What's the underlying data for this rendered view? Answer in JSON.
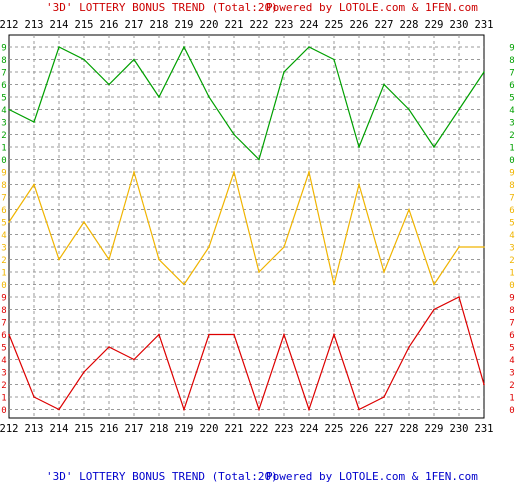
{
  "header": {
    "title_text": "'3D' LOTTERY BONUS TREND (Total:20)",
    "powered_text": "Powered by LOTOLE.com & 1FEN.com",
    "title_color": "#cc0000"
  },
  "footer": {
    "title_text": "'3D' LOTTERY BONUS TREND (Total:20)",
    "powered_text": "Powered by LOTOLE.com & 1FEN.com",
    "title_color": "#0000cc"
  },
  "chart_data": {
    "type": "line",
    "categories": [
      "212",
      "213",
      "214",
      "215",
      "216",
      "217",
      "218",
      "219",
      "220",
      "221",
      "222",
      "223",
      "224",
      "225",
      "226",
      "227",
      "228",
      "229",
      "230",
      "231"
    ],
    "panels": [
      {
        "color": "#00a000",
        "tick_color": "#00a000",
        "ticks": [
          "0",
          "1",
          "2",
          "3",
          "4",
          "5",
          "6",
          "7",
          "8",
          "9"
        ],
        "values": [
          4,
          3,
          9,
          8,
          6,
          8,
          5,
          9,
          5,
          2,
          0,
          7,
          9,
          8,
          1,
          6,
          4,
          1,
          4,
          7
        ]
      },
      {
        "color": "#f0b400",
        "tick_color": "#f0b400",
        "ticks": [
          "0",
          "1",
          "2",
          "3",
          "4",
          "5",
          "6",
          "7",
          "8",
          "9"
        ],
        "values": [
          5,
          8,
          2,
          5,
          2,
          9,
          2,
          0,
          3,
          9,
          1,
          3,
          9,
          0,
          8,
          1,
          6,
          0,
          3,
          3
        ]
      },
      {
        "color": "#dd0000",
        "tick_color": "#dd0000",
        "ticks": [
          "0",
          "1",
          "2",
          "3",
          "4",
          "5",
          "6",
          "7",
          "8",
          "9"
        ],
        "values": [
          6,
          1,
          0,
          3,
          5,
          4,
          6,
          0,
          6,
          6,
          0,
          6,
          0,
          6,
          0,
          1,
          5,
          8,
          9,
          2
        ]
      }
    ],
    "ylim": [
      0,
      9
    ],
    "grid": true
  }
}
